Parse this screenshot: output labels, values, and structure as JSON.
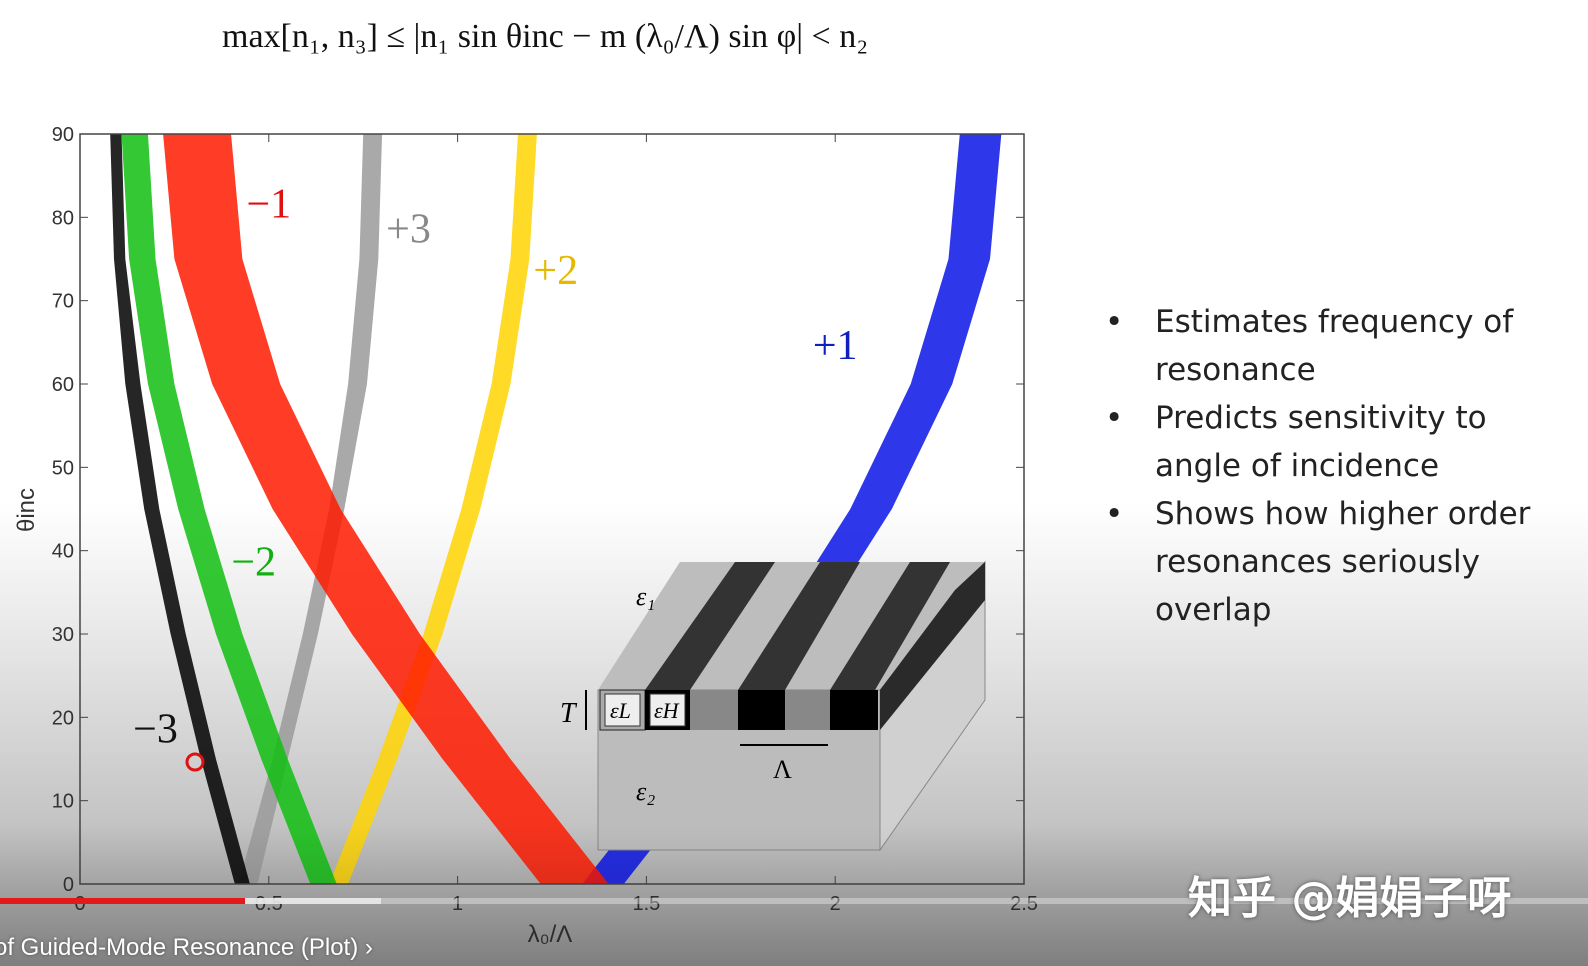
{
  "slide": {
    "formula": "max[n₁, n₃] ≤ |n₁ sin θinc − m (λ₀/Λ) sin φ| < n₂",
    "bullets": [
      "Estimates frequency of resonance",
      "Predicts sensitivity to angle of incidence",
      "Shows how higher order resonances seriously overlap"
    ],
    "inset": {
      "eps1": "ε₁",
      "eps2": "ε₂",
      "epsL": "εL",
      "epsH": "εH",
      "thickness": "T",
      "period": "Λ"
    }
  },
  "chart_data": {
    "type": "area",
    "xlabel": "λ₀/Λ",
    "ylabel": "θinc",
    "xlim": [
      0,
      2.5
    ],
    "ylim": [
      0,
      90
    ],
    "xticks": [
      "0",
      "0.5",
      "1",
      "1.5",
      "2",
      "2.5"
    ],
    "yticks": [
      "0",
      "10",
      "20",
      "30",
      "40",
      "50",
      "60",
      "70",
      "80",
      "90"
    ],
    "grid": false,
    "theta": [
      0,
      15,
      30,
      45,
      60,
      75,
      90
    ],
    "series": [
      {
        "name": "+1",
        "color": "#0a14e6",
        "lambda_low": [
          1.33,
          1.59,
          1.83,
          2.04,
          2.2,
          2.3,
          2.33
        ],
        "lambda_high": [
          1.44,
          1.7,
          1.94,
          2.15,
          2.31,
          2.41,
          2.44
        ]
      },
      {
        "name": "+2",
        "color": "#ffd400",
        "lambda_low": [
          0.66,
          0.79,
          0.91,
          1.01,
          1.09,
          1.14,
          1.16
        ],
        "lambda_high": [
          0.71,
          0.84,
          0.96,
          1.06,
          1.14,
          1.19,
          1.21
        ]
      },
      {
        "name": "+3",
        "color": "#9a9a9a",
        "lambda_low": [
          0.42,
          0.51,
          0.59,
          0.66,
          0.71,
          0.74,
          0.75
        ],
        "lambda_high": [
          0.47,
          0.55,
          0.63,
          0.7,
          0.76,
          0.79,
          0.8
        ]
      },
      {
        "name": "−3",
        "color": "#000000",
        "lambda_low": [
          0.41,
          0.32,
          0.24,
          0.17,
          0.12,
          0.09,
          0.08
        ],
        "lambda_high": [
          0.45,
          0.36,
          0.28,
          0.21,
          0.16,
          0.12,
          0.11
        ]
      },
      {
        "name": "−2",
        "color": "#10c010",
        "lambda_low": [
          0.61,
          0.48,
          0.36,
          0.26,
          0.18,
          0.13,
          0.11
        ],
        "lambda_high": [
          0.68,
          0.55,
          0.43,
          0.33,
          0.25,
          0.2,
          0.18
        ]
      },
      {
        "name": "−1",
        "color": "#ff1a00",
        "lambda_low": [
          1.22,
          0.96,
          0.72,
          0.51,
          0.35,
          0.25,
          0.22
        ],
        "lambda_high": [
          1.4,
          1.14,
          0.9,
          0.69,
          0.53,
          0.43,
          0.4
        ]
      }
    ],
    "annotations": [
      {
        "text": "−1",
        "color": "#e01010",
        "x": 0.5,
        "y": 80
      },
      {
        "text": "+3",
        "color": "#888888",
        "x": 0.87,
        "y": 77
      },
      {
        "text": "+2",
        "color": "#e6b800",
        "x": 1.26,
        "y": 72
      },
      {
        "text": "+1",
        "color": "#1020c0",
        "x": 2.0,
        "y": 63
      },
      {
        "text": "−2",
        "color": "#10b010",
        "x": 0.46,
        "y": 37
      },
      {
        "text": "−3",
        "color": "#111111",
        "x": 0.2,
        "y": 17
      }
    ]
  },
  "player": {
    "title": "of Guided-Mode Resonance (Plot)",
    "chevron_icon": "chevron-right-icon",
    "progress_percent": 15.4,
    "buffered_percent": 24,
    "accent": "#e41a1a"
  },
  "watermark": "知乎 @娟娟子呀"
}
